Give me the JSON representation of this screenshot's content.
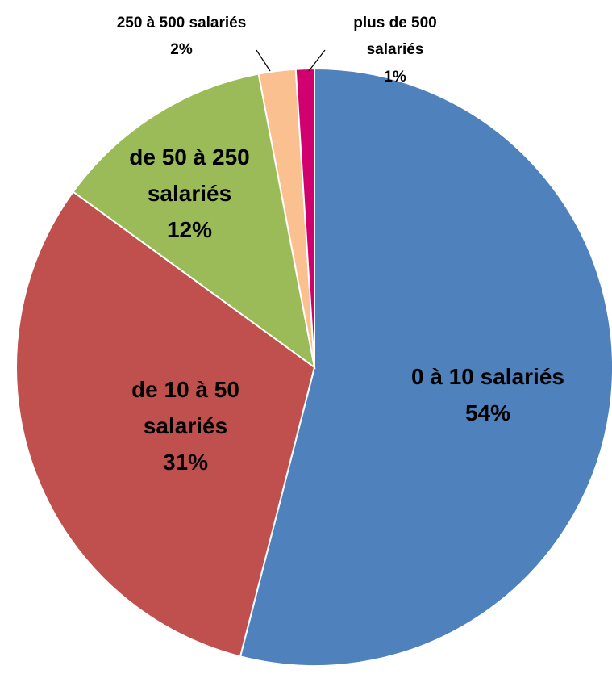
{
  "chart_data": {
    "type": "pie",
    "categories": [
      "0 à 10 salariés",
      "de 10 à 50 salariés",
      "de 50 à 250 salariés",
      "250 à 500 salariés",
      "plus de 500 salariés"
    ],
    "values": [
      54,
      31,
      12,
      2,
      1
    ],
    "value_labels": [
      "54%",
      "31%",
      "12%",
      "2%",
      "1%"
    ],
    "colors": [
      "#4f81bd",
      "#c0504d",
      "#9bbb59",
      "#fac090",
      "#d0006f"
    ]
  }
}
